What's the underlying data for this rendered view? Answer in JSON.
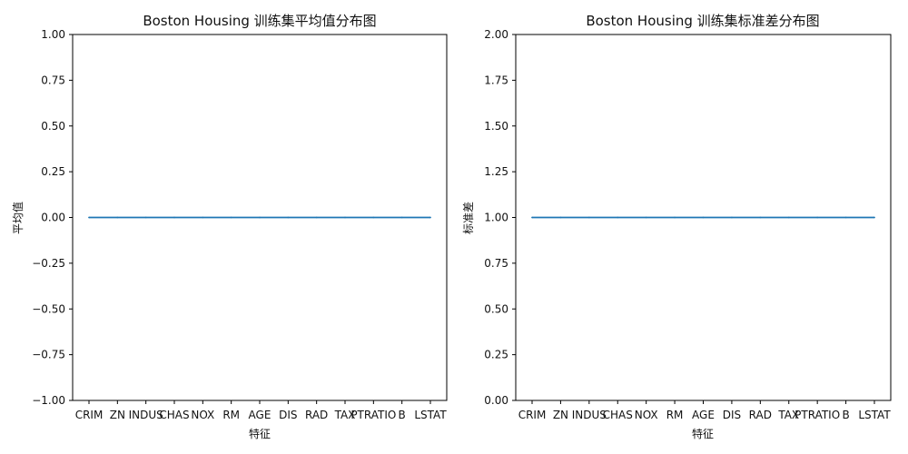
{
  "chart_data": [
    {
      "type": "line",
      "title": "Boston Housing 训练集平均值分布图",
      "xlabel": "特征",
      "ylabel": "平均值",
      "categories": [
        "CRIM",
        "ZN",
        "INDUS",
        "CHAS",
        "NOX",
        "RM",
        "AGE",
        "DIS",
        "RAD",
        "TAX",
        "PTRATIO",
        "B",
        "LSTAT"
      ],
      "values": [
        0,
        0,
        0,
        0,
        0,
        0,
        0,
        0,
        0,
        0,
        0,
        0,
        0
      ],
      "ylim": [
        -1.0,
        1.0
      ],
      "yticks": [
        "−1.00",
        "−0.75",
        "−0.50",
        "−0.25",
        "0.00",
        "0.25",
        "0.50",
        "0.75",
        "1.00"
      ],
      "ytick_values": [
        -1.0,
        -0.75,
        -0.5,
        -0.25,
        0,
        0.25,
        0.5,
        0.75,
        1.0
      ],
      "line_color": "#1f77b4",
      "grid": false
    },
    {
      "type": "line",
      "title": "Boston Housing 训练集标准差分布图",
      "xlabel": "特征",
      "ylabel": "标准差",
      "categories": [
        "CRIM",
        "ZN",
        "INDUS",
        "CHAS",
        "NOX",
        "RM",
        "AGE",
        "DIS",
        "RAD",
        "TAX",
        "PTRATIO",
        "B",
        "LSTAT"
      ],
      "values": [
        1,
        1,
        1,
        1,
        1,
        1,
        1,
        1,
        1,
        1,
        1,
        1,
        1
      ],
      "ylim": [
        0.0,
        2.0
      ],
      "yticks": [
        "0.00",
        "0.25",
        "0.50",
        "0.75",
        "1.00",
        "1.25",
        "1.50",
        "1.75",
        "2.00"
      ],
      "ytick_values": [
        0,
        0.25,
        0.5,
        0.75,
        1.0,
        1.25,
        1.5,
        1.75,
        2.0
      ],
      "line_color": "#1f77b4",
      "grid": false
    }
  ]
}
